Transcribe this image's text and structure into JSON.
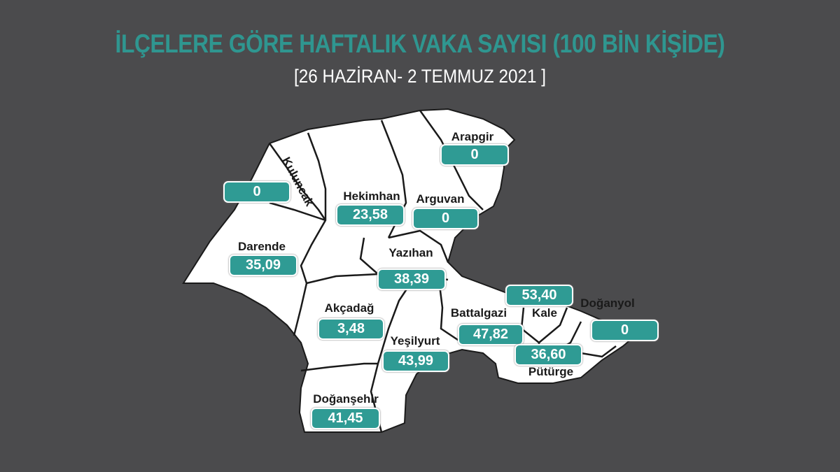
{
  "title": "İLÇELERE GÖRE HAFTALIK VAKA SAYISI (100 BİN KİŞİDE)",
  "subtitle": "[26 HAZİRAN- 2 TEMMUZ 2021 ]",
  "colors": {
    "background": "#4b4b4d",
    "accent": "#2f9b94",
    "map_fill": "#ffffff"
  },
  "districts": [
    {
      "name": "Arapgir",
      "value": "0"
    },
    {
      "name": "Kuluncak",
      "value": "0"
    },
    {
      "name": "Hekimhan",
      "value": "23,58"
    },
    {
      "name": "Arguvan",
      "value": "0"
    },
    {
      "name": "Darende",
      "value": "35,09"
    },
    {
      "name": "Yazıhan",
      "value": "38,39"
    },
    {
      "name": "Kale",
      "value": "53,40"
    },
    {
      "name": "Doğanyol",
      "value": "0"
    },
    {
      "name": "Akçadağ",
      "value": "3,48"
    },
    {
      "name": "Battalgazi",
      "value": "47,82"
    },
    {
      "name": "Yeşilyurt",
      "value": "43,99"
    },
    {
      "name": "Pütürge",
      "value": "36,60"
    },
    {
      "name": "Doğanşehir",
      "value": "41,45"
    }
  ]
}
